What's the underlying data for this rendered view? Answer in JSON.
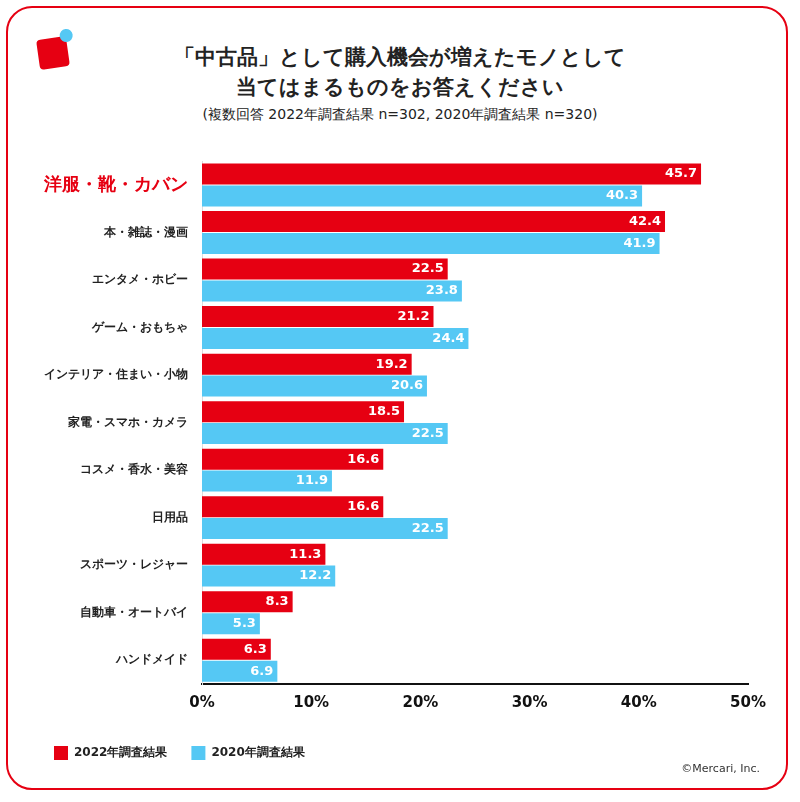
{
  "chart_data": {
    "type": "bar",
    "orientation": "horizontal",
    "title": [
      "「中古品」として購入機会が増えたモノとして",
      "当てはまるものをお答えください"
    ],
    "subtitle": "(複数回答 2022年調査結果 n=302, 2020年調査結果 n=320)",
    "categories": [
      "洋服・靴・カバン",
      "本・雑誌・漫画",
      "エンタメ・ホビー",
      "ゲーム・おもちゃ",
      "インテリア・住まい・小物",
      "家電・スマホ・カメラ",
      "コスメ・香水・美容",
      "日用品",
      "スポーツ・レジャー",
      "自動車・オートバイ",
      "ハンドメイド"
    ],
    "series": [
      {
        "name": "2022年調査結果",
        "color": "#e60012",
        "values": [
          45.7,
          42.4,
          22.5,
          21.2,
          19.2,
          18.5,
          16.6,
          16.6,
          11.3,
          8.3,
          6.3
        ]
      },
      {
        "name": "2020年調査結果",
        "color": "#55c8f4",
        "values": [
          40.3,
          41.9,
          23.8,
          24.4,
          20.6,
          22.5,
          11.9,
          22.5,
          12.2,
          5.3,
          6.9
        ]
      }
    ],
    "xlim": [
      0,
      50
    ],
    "xticks": [
      {
        "value": 0,
        "label": "0%"
      },
      {
        "value": 10,
        "label": "10%"
      },
      {
        "value": 20,
        "label": "20%"
      },
      {
        "value": 30,
        "label": "30%"
      },
      {
        "value": 40,
        "label": "40%"
      },
      {
        "value": 50,
        "label": "50%"
      }
    ],
    "grid": false,
    "legend": "bottom-left",
    "data_labels": true,
    "annotations": [
      "©Mercari, Inc."
    ]
  }
}
